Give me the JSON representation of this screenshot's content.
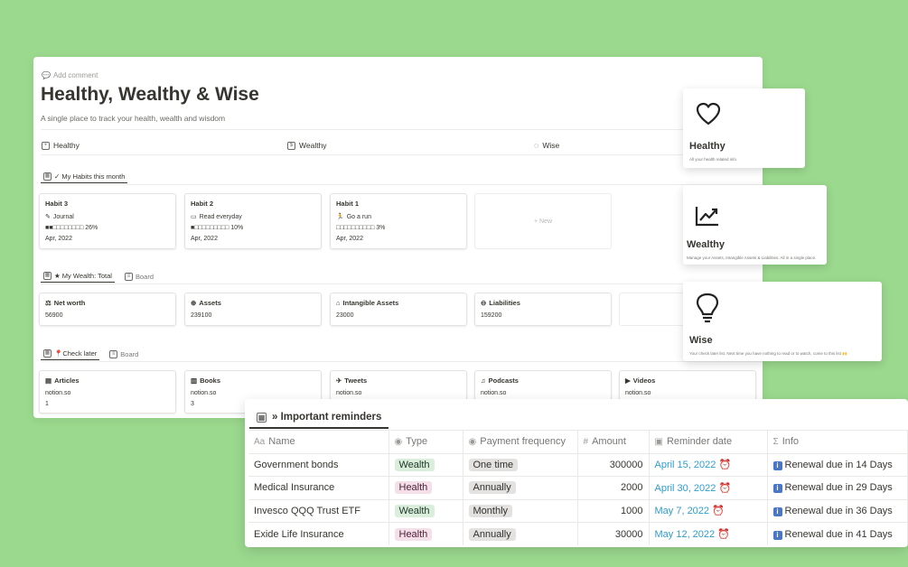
{
  "page": {
    "add_comment": "Add comment",
    "title": "Healthy, Wealthy & Wise",
    "subtitle": "A single place to track your health, wealth and wisdom",
    "links": [
      "Healthy",
      "Wealthy",
      "Wise"
    ]
  },
  "habits": {
    "tab": "✓ My Habits this month",
    "new_label": "+ New",
    "cards": [
      {
        "title": "Habit 3",
        "type": "Journal",
        "progress": "■■□□□□□□□□ 26%",
        "date": "Apr, 2022"
      },
      {
        "title": "Habit 2",
        "type": "Read everyday",
        "progress": "■□□□□□□□□□ 10%",
        "date": "Apr, 2022"
      },
      {
        "title": "Habit 1",
        "type": "Go a run",
        "progress": "□□□□□□□□□□ 3%",
        "date": "Apr, 2022"
      }
    ]
  },
  "wealth": {
    "tab": "★ My Wealth: Total",
    "tab2": "Board",
    "new_label": "+",
    "cards": [
      {
        "title": "Net worth",
        "value": "56900"
      },
      {
        "title": "Assets",
        "value": "239100"
      },
      {
        "title": "Intangible Assets",
        "value": "23000"
      },
      {
        "title": "Liabilities",
        "value": "159200"
      }
    ]
  },
  "later": {
    "tab": "📍Check later",
    "tab2": "Board",
    "cards": [
      {
        "title": "Articles",
        "source": "notion.so",
        "count": "1"
      },
      {
        "title": "Books",
        "source": "notion.so",
        "count": "3"
      },
      {
        "title": "Tweets",
        "source": "notion.so",
        "count": ""
      },
      {
        "title": "Podcasts",
        "source": "notion.so",
        "count": ""
      },
      {
        "title": "Videos",
        "source": "notion.so",
        "count": ""
      }
    ]
  },
  "features": [
    {
      "name": "Healthy",
      "desc": "All your health related info",
      "icon": "heart-icon"
    },
    {
      "name": "Wealthy",
      "desc": "Manage your Assets, Intangible Assets & Liabilities. All in a single place.",
      "icon": "chart-icon"
    },
    {
      "name": "Wise",
      "desc": "Your check later list. Next time you have nothing to read or to watch, come to this list 🙌",
      "icon": "bulb-icon"
    }
  ],
  "reminders": {
    "title": "» Important reminders",
    "columns": [
      "Name",
      "Type",
      "Payment frequency",
      "Amount",
      "Reminder date",
      "Info"
    ],
    "rows": [
      {
        "name": "Government bonds",
        "type": "Wealth",
        "freq": "One time",
        "amount": "300000",
        "date": "April 15, 2022",
        "info": "Renewal due in 14 Days"
      },
      {
        "name": "Medical Insurance",
        "type": "Health",
        "freq": "Annually",
        "amount": "2000",
        "date": "April 30, 2022",
        "info": "Renewal due in 29 Days"
      },
      {
        "name": "Invesco QQQ Trust ETF",
        "type": "Wealth",
        "freq": "Monthly",
        "amount": "1000",
        "date": "May 7, 2022",
        "info": "Renewal due in 36 Days"
      },
      {
        "name": "Exide Life Insurance",
        "type": "Health",
        "freq": "Annually",
        "amount": "30000",
        "date": "May 12, 2022",
        "info": "Renewal due in 41 Days"
      }
    ]
  },
  "colors": {
    "background": "#9bd98e",
    "date_link": "#2e9dce",
    "wealth_tag": "#dbeddb",
    "health_tag": "#f5e0e9"
  }
}
